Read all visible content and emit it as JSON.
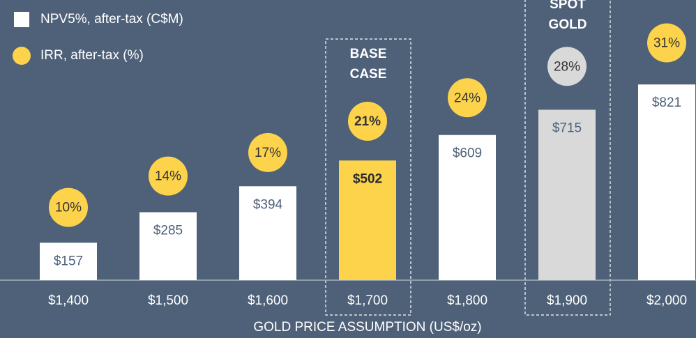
{
  "chart_data": {
    "type": "bar",
    "x_label": "GOLD PRICE ASSUMPTION (US$/oz)",
    "categories": [
      "$1,400",
      "$1,500",
      "$1,600",
      "$1,700",
      "$1,800",
      "$1,900",
      "$2,000"
    ],
    "series": [
      {
        "name": "NPV5%, after-tax (C$M)",
        "type": "bar",
        "color": "#ffffff",
        "colors": [
          "#ffffff",
          "#ffffff",
          "#ffffff",
          "#fdd34b",
          "#ffffff",
          "#d9d9d9",
          "#ffffff"
        ],
        "values": [
          157,
          285,
          394,
          502,
          609,
          715,
          821
        ],
        "value_labels": [
          "$157",
          "$285",
          "$394",
          "$502",
          "$609",
          "$715",
          "$821"
        ]
      },
      {
        "name": "IRR, after-tax (%)",
        "type": "bubble",
        "color": "#fdd34b",
        "colors": [
          "#fdd34b",
          "#fdd34b",
          "#fdd34b",
          "#fdd34b",
          "#fdd34b",
          "#d9d9d9",
          "#fdd34b"
        ],
        "values": [
          10,
          14,
          17,
          21,
          24,
          28,
          31
        ],
        "value_labels": [
          "10%",
          "14%",
          "17%",
          "21%",
          "24%",
          "28%",
          "31%"
        ]
      }
    ],
    "annotations": [
      {
        "category": "$1,700",
        "lines": [
          "BASE",
          "CASE"
        ]
      },
      {
        "category": "$1,900",
        "lines": [
          "SPOT",
          "GOLD"
        ]
      }
    ]
  }
}
